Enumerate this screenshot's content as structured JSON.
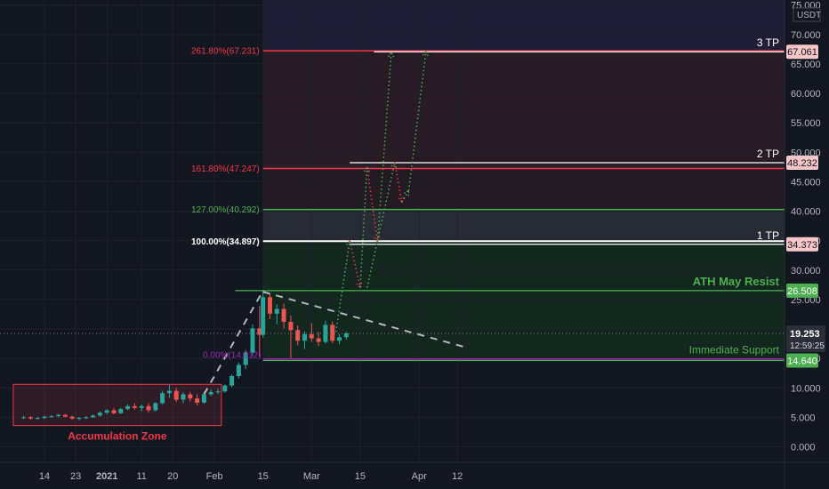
{
  "chart_data": {
    "type": "candlestick",
    "currency": "USDT",
    "y_axis": {
      "ylim": [
        -2.5,
        75
      ],
      "ticks": [
        "0.000",
        "5.000",
        "10.000",
        "15.000",
        "20.000",
        "25.000",
        "30.000",
        "35.000",
        "40.000",
        "45.000",
        "50.000",
        "55.000",
        "60.000",
        "65.000",
        "70.000",
        "75.000"
      ]
    },
    "x_axis": {
      "tick_labels": [
        {
          "label": "14",
          "date": "2020-12-14",
          "bold": false
        },
        {
          "label": "23",
          "date": "2020-12-23",
          "bold": false
        },
        {
          "label": "2021",
          "date": "2021-01-01",
          "bold": true
        },
        {
          "label": "11",
          "date": "2021-01-11",
          "bold": false
        },
        {
          "label": "20",
          "date": "2021-01-20",
          "bold": false
        },
        {
          "label": "Feb",
          "date": "2021-02-01",
          "bold": false
        },
        {
          "label": "15",
          "date": "2021-02-15",
          "bold": false
        },
        {
          "label": "Mar",
          "date": "2021-03-01",
          "bold": false
        },
        {
          "label": "15",
          "date": "2021-03-15",
          "bold": false
        },
        {
          "label": "Apr",
          "date": "2021-04-01",
          "bold": false
        },
        {
          "label": "12",
          "date": "2021-04-12",
          "bold": false
        }
      ]
    },
    "candles": [
      {
        "date": "2020-12-08",
        "o": 4.9,
        "h": 5.3,
        "l": 4.7,
        "c": 5.0
      },
      {
        "date": "2020-12-10",
        "o": 5.0,
        "h": 5.2,
        "l": 4.6,
        "c": 4.8
      },
      {
        "date": "2020-12-12",
        "o": 4.8,
        "h": 5.1,
        "l": 4.6,
        "c": 4.9
      },
      {
        "date": "2020-12-14",
        "o": 4.9,
        "h": 5.3,
        "l": 4.7,
        "c": 5.1
      },
      {
        "date": "2020-12-16",
        "o": 5.1,
        "h": 5.4,
        "l": 4.9,
        "c": 5.2
      },
      {
        "date": "2020-12-18",
        "o": 5.2,
        "h": 5.6,
        "l": 5.0,
        "c": 5.4
      },
      {
        "date": "2020-12-20",
        "o": 5.4,
        "h": 5.6,
        "l": 5.0,
        "c": 5.1
      },
      {
        "date": "2020-12-22",
        "o": 5.1,
        "h": 5.3,
        "l": 4.6,
        "c": 4.8
      },
      {
        "date": "2020-12-24",
        "o": 4.8,
        "h": 5.1,
        "l": 4.5,
        "c": 4.9
      },
      {
        "date": "2020-12-26",
        "o": 4.9,
        "h": 5.2,
        "l": 4.7,
        "c": 5.0
      },
      {
        "date": "2020-12-28",
        "o": 5.0,
        "h": 5.5,
        "l": 4.9,
        "c": 5.3
      },
      {
        "date": "2020-12-30",
        "o": 5.3,
        "h": 6.0,
        "l": 5.1,
        "c": 5.8
      },
      {
        "date": "2021-01-01",
        "o": 5.8,
        "h": 6.4,
        "l": 5.5,
        "c": 6.2
      },
      {
        "date": "2021-01-03",
        "o": 6.2,
        "h": 6.6,
        "l": 5.5,
        "c": 5.7
      },
      {
        "date": "2021-01-05",
        "o": 5.7,
        "h": 6.6,
        "l": 5.6,
        "c": 6.4
      },
      {
        "date": "2021-01-07",
        "o": 6.4,
        "h": 7.2,
        "l": 6.2,
        "c": 6.9
      },
      {
        "date": "2021-01-09",
        "o": 6.9,
        "h": 7.4,
        "l": 6.3,
        "c": 6.6
      },
      {
        "date": "2021-01-11",
        "o": 6.6,
        "h": 7.2,
        "l": 6.0,
        "c": 6.9
      },
      {
        "date": "2021-01-13",
        "o": 6.9,
        "h": 7.4,
        "l": 5.8,
        "c": 6.2
      },
      {
        "date": "2021-01-15",
        "o": 6.2,
        "h": 7.6,
        "l": 6.0,
        "c": 7.4
      },
      {
        "date": "2021-01-17",
        "o": 7.4,
        "h": 9.5,
        "l": 7.2,
        "c": 9.1
      },
      {
        "date": "2021-01-19",
        "o": 9.1,
        "h": 10.5,
        "l": 8.3,
        "c": 9.5
      },
      {
        "date": "2021-01-21",
        "o": 9.5,
        "h": 10.0,
        "l": 7.6,
        "c": 8.0
      },
      {
        "date": "2021-01-23",
        "o": 8.0,
        "h": 9.3,
        "l": 7.4,
        "c": 8.9
      },
      {
        "date": "2021-01-25",
        "o": 8.9,
        "h": 9.3,
        "l": 7.7,
        "c": 8.2
      },
      {
        "date": "2021-01-27",
        "o": 8.2,
        "h": 8.9,
        "l": 7.0,
        "c": 7.5
      },
      {
        "date": "2021-01-29",
        "o": 7.5,
        "h": 9.4,
        "l": 7.3,
        "c": 8.9
      },
      {
        "date": "2021-01-31",
        "o": 8.9,
        "h": 9.8,
        "l": 8.6,
        "c": 9.3
      },
      {
        "date": "2021-02-02",
        "o": 9.3,
        "h": 9.9,
        "l": 8.9,
        "c": 9.4
      },
      {
        "date": "2021-02-04",
        "o": 9.4,
        "h": 10.6,
        "l": 9.2,
        "c": 10.4
      },
      {
        "date": "2021-02-06",
        "o": 10.4,
        "h": 12.3,
        "l": 10.1,
        "c": 12.0
      },
      {
        "date": "2021-02-08",
        "o": 12.0,
        "h": 14.3,
        "l": 11.6,
        "c": 13.9
      },
      {
        "date": "2021-02-10",
        "o": 13.9,
        "h": 16.4,
        "l": 13.2,
        "c": 16.0
      },
      {
        "date": "2021-02-12",
        "o": 16.0,
        "h": 20.8,
        "l": 15.4,
        "c": 20.1
      },
      {
        "date": "2021-02-14",
        "o": 20.1,
        "h": 23.9,
        "l": 15.3,
        "c": 19.0
      },
      {
        "date": "2021-02-15",
        "o": 19.0,
        "h": 26.5,
        "l": 18.5,
        "c": 25.4
      },
      {
        "date": "2021-02-17",
        "o": 25.4,
        "h": 26.0,
        "l": 21.7,
        "c": 22.6
      },
      {
        "date": "2021-02-19",
        "o": 22.6,
        "h": 24.2,
        "l": 20.8,
        "c": 23.4
      },
      {
        "date": "2021-02-21",
        "o": 23.4,
        "h": 24.3,
        "l": 20.1,
        "c": 21.2
      },
      {
        "date": "2021-02-23",
        "o": 21.2,
        "h": 22.3,
        "l": 15.0,
        "c": 19.8
      },
      {
        "date": "2021-02-25",
        "o": 19.8,
        "h": 20.6,
        "l": 17.2,
        "c": 18.0
      },
      {
        "date": "2021-02-27",
        "o": 18.0,
        "h": 19.6,
        "l": 16.6,
        "c": 19.1
      },
      {
        "date": "2021-03-01",
        "o": 19.1,
        "h": 21.0,
        "l": 17.8,
        "c": 18.4
      },
      {
        "date": "2021-03-03",
        "o": 18.4,
        "h": 19.5,
        "l": 17.1,
        "c": 17.8
      },
      {
        "date": "2021-03-05",
        "o": 17.8,
        "h": 21.4,
        "l": 17.5,
        "c": 20.7
      },
      {
        "date": "2021-03-07",
        "o": 20.7,
        "h": 21.3,
        "l": 17.6,
        "c": 18.0
      },
      {
        "date": "2021-03-09",
        "o": 18.0,
        "h": 19.1,
        "l": 17.4,
        "c": 18.6
      },
      {
        "date": "2021-03-11",
        "o": 18.6,
        "h": 19.5,
        "l": 18.2,
        "c": 19.25
      }
    ],
    "horizontal_levels": [
      {
        "name": "3 TP",
        "value": 67.061,
        "color": "#f7a8a8"
      },
      {
        "name": "2 TP",
        "value": 48.232,
        "color": "#f7a8a8"
      },
      {
        "name": "1 TP",
        "value": 34.373,
        "color": "#f7a8a8"
      },
      {
        "name": "ATH May Resist",
        "value": 26.508,
        "color": "#4caf50"
      },
      {
        "name": "Immediate Support",
        "value": 14.64,
        "color": "#4caf50"
      }
    ],
    "fib_levels": [
      {
        "label": "261.80%(67.231)",
        "value": 67.231,
        "color": "#f23645"
      },
      {
        "label": "161.80%(47.247)",
        "value": 47.247,
        "color": "#f23645"
      },
      {
        "label": "127.00%(40.292)",
        "value": 40.292,
        "color": "#4caf50"
      },
      {
        "label": "100.00%(34.897)",
        "value": 34.897,
        "color": "#ffffff"
      },
      {
        "label": "0.00%(14.912)",
        "value": 14.912,
        "color": "#9c27b0"
      }
    ],
    "current_price": {
      "value": 19.253,
      "countdown": "12:59:25"
    },
    "axis_tags": [
      {
        "text": "67.061",
        "value": 67.061,
        "bg": "#f7c6c6",
        "fg": "#131722"
      },
      {
        "text": "48.232",
        "value": 48.232,
        "bg": "#f7c6c6",
        "fg": "#131722"
      },
      {
        "text": "34.373",
        "value": 34.373,
        "bg": "#f7c6c6",
        "fg": "#131722"
      },
      {
        "text": "26.508",
        "value": 26.508,
        "bg": "#4caf50",
        "fg": "#ffffff"
      },
      {
        "text": "14.640",
        "value": 14.64,
        "bg": "#4caf50",
        "fg": "#ffffff"
      }
    ],
    "annotations": {
      "accumulation_zone": {
        "label": "Accumulation Zone",
        "start": "2020-12-05",
        "end": "2021-02-03",
        "low": 3.6,
        "high": 10.6
      },
      "fib_zone_start": "2021-02-15",
      "trendline": {
        "start": {
          "date": "2021-02-15",
          "value": 26.3
        },
        "end": {
          "date": "2021-04-15",
          "value": 16.8
        }
      },
      "rally_path": [
        {
          "date": "2021-01-29",
          "value": 8.9
        },
        {
          "date": "2021-02-15",
          "value": 26.5
        }
      ],
      "projection_path_1": [
        {
          "date": "2021-03-08",
          "value": 19.5
        },
        {
          "date": "2021-03-12",
          "value": 35.0
        },
        {
          "date": "2021-03-15",
          "value": 27.0
        },
        {
          "date": "2021-03-17",
          "value": 47.5
        },
        {
          "date": "2021-03-20",
          "value": 34.8
        },
        {
          "date": "2021-03-24",
          "value": 67.0
        }
      ],
      "projection_path_2": [
        {
          "date": "2021-03-17",
          "value": 27.0
        },
        {
          "date": "2021-03-25",
          "value": 48.3
        },
        {
          "date": "2021-03-27",
          "value": 41.5
        },
        {
          "date": "2021-03-29",
          "value": 43.5
        },
        {
          "date": "2021-04-03",
          "value": 67.2
        }
      ]
    }
  }
}
